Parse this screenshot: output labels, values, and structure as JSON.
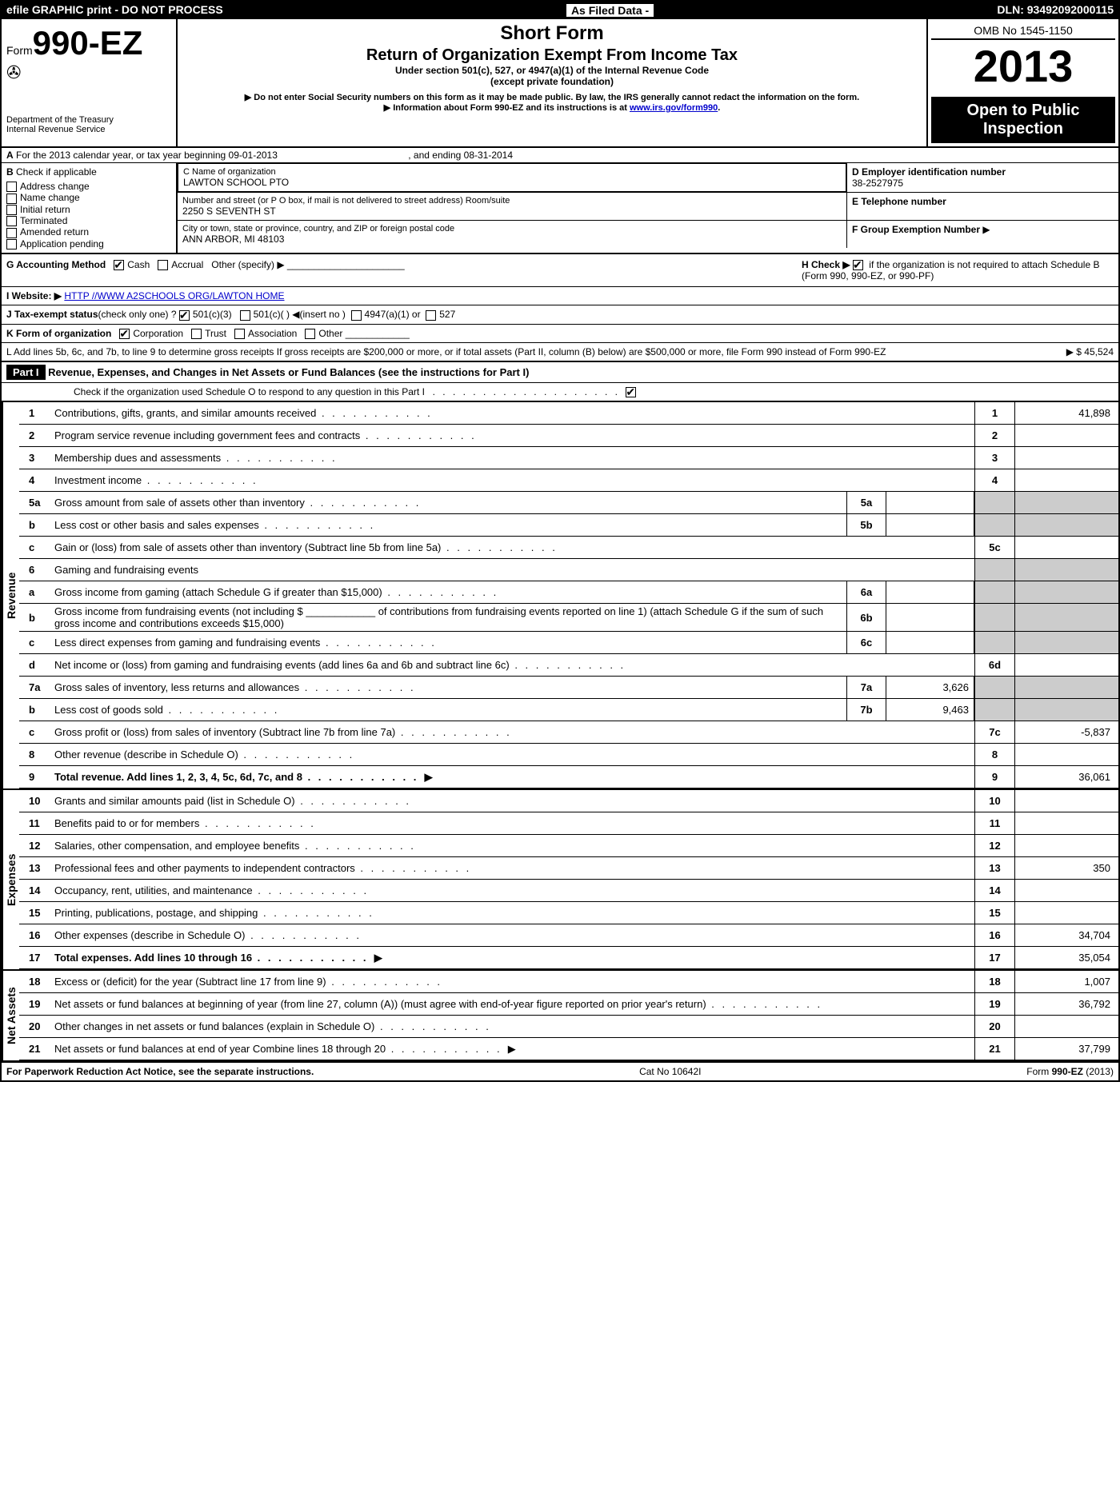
{
  "topbar": {
    "left": "efile GRAPHIC print - DO NOT PROCESS",
    "mid": "As Filed Data -",
    "right": "DLN: 93492092000115"
  },
  "header": {
    "form_prefix": "Form",
    "form_no": "990-EZ",
    "dept1": "Department of the Treasury",
    "dept2": "Internal Revenue Service",
    "title1": "Short Form",
    "title2": "Return of Organization Exempt From Income Tax",
    "sub1": "Under section 501(c), 527, or 4947(a)(1) of the Internal Revenue Code",
    "sub2": "(except private foundation)",
    "warn1": "▶ Do not enter Social Security numbers on this form as it may be made public. By law, the IRS generally cannot redact the information on the form.",
    "warn2": "▶ Information about Form 990-EZ and its instructions is at ",
    "warn2_link": "www.irs.gov/form990",
    "omb": "OMB No 1545-1150",
    "year": "2013",
    "open1": "Open to Public",
    "open2": "Inspection"
  },
  "A": {
    "text_a": "A",
    "text": "For the 2013 calendar year, or tax year beginning 09-01-2013",
    "end": ", and ending 08-31-2014"
  },
  "B": {
    "label": "B",
    "text": "Check if applicable",
    "opts": [
      "Address change",
      "Name change",
      "Initial return",
      "Terminated",
      "Amended return",
      "Application pending"
    ]
  },
  "C": {
    "label_name": "C Name of organization",
    "name": "LAWTON SCHOOL PTO",
    "label_addr": "Number and street (or P O box, if mail is not delivered to street address) Room/suite",
    "addr": "2250 S SEVENTH ST",
    "label_city": "City or town, state or province, country, and ZIP or foreign postal code",
    "city": "ANN ARBOR, MI  48103"
  },
  "D": {
    "label": "D Employer identification number",
    "val": "38-2527975"
  },
  "E": {
    "label": "E Telephone number",
    "val": ""
  },
  "F": {
    "label": "F Group Exemption Number",
    "arrow": "▶"
  },
  "G": {
    "label": "G Accounting Method",
    "cash": "Cash",
    "accrual": "Accrual",
    "other": "Other (specify) ▶"
  },
  "H": {
    "text": "H  Check ▶",
    "rest": "if the organization is not required to attach Schedule B (Form 990, 990-EZ, or 990-PF)"
  },
  "I": {
    "label": "I Website: ▶",
    "val": "HTTP //WWW A2SCHOOLS ORG/LAWTON HOME"
  },
  "J": {
    "label": "J Tax-exempt status",
    "rest": "(check only one) ?",
    "o1": "501(c)(3)",
    "o2": "501(c)(  ) ◀(insert no )",
    "o3": "4947(a)(1) or",
    "o4": "527"
  },
  "K": {
    "label": "K Form of organization",
    "o1": "Corporation",
    "o2": "Trust",
    "o3": "Association",
    "o4": "Other"
  },
  "L": {
    "text": "L Add lines 5b, 6c, and 7b, to line 9 to determine gross receipts  If gross receipts are $200,000 or more, or if total assets (Part II, column (B) below) are $500,000 or more, file Form 990 instead of Form 990-EZ",
    "arrow": "▶",
    "val": "$ 45,524"
  },
  "part1": {
    "hdr": "Part I",
    "title": "Revenue, Expenses, and Changes in Net Assets or Fund Balances (see the instructions for Part I)",
    "sub": "Check if the organization used Schedule O to respond to any question in this Part I"
  },
  "sec_labels": {
    "rev": "Revenue",
    "exp": "Expenses",
    "na": "Net Assets"
  },
  "lines": {
    "l1": {
      "n": "1",
      "d": "Contributions, gifts, grants, and similar amounts received",
      "rn": "1",
      "rv": "41,898"
    },
    "l2": {
      "n": "2",
      "d": "Program service revenue including government fees and contracts",
      "rn": "2",
      "rv": ""
    },
    "l3": {
      "n": "3",
      "d": "Membership dues and assessments",
      "rn": "3",
      "rv": ""
    },
    "l4": {
      "n": "4",
      "d": "Investment income",
      "rn": "4",
      "rv": ""
    },
    "l5a": {
      "n": "5a",
      "d": "Gross amount from sale of assets other than inventory",
      "mn": "5a",
      "mv": ""
    },
    "l5b": {
      "n": "b",
      "d": "Less  cost or other basis and sales expenses",
      "mn": "5b",
      "mv": ""
    },
    "l5c": {
      "n": "c",
      "d": "Gain or (loss) from sale of assets other than inventory (Subtract line 5b from line 5a)",
      "rn": "5c",
      "rv": ""
    },
    "l6": {
      "n": "6",
      "d": "Gaming and fundraising events"
    },
    "l6a": {
      "n": "a",
      "d": "Gross income from gaming (attach Schedule G if greater than $15,000)",
      "mn": "6a",
      "mv": ""
    },
    "l6b": {
      "n": "b",
      "d": "Gross income from fundraising events (not including $ ____________ of contributions from fundraising events reported on line 1) (attach Schedule G if the sum of such gross income and contributions exceeds $15,000)",
      "mn": "6b",
      "mv": ""
    },
    "l6c": {
      "n": "c",
      "d": "Less  direct expenses from gaming and fundraising events",
      "mn": "6c",
      "mv": ""
    },
    "l6d": {
      "n": "d",
      "d": "Net income or (loss) from gaming and fundraising events (add lines 6a and 6b and subtract line 6c)",
      "rn": "6d",
      "rv": ""
    },
    "l7a": {
      "n": "7a",
      "d": "Gross sales of inventory, less returns and allowances",
      "mn": "7a",
      "mv": "3,626"
    },
    "l7b": {
      "n": "b",
      "d": "Less  cost of goods sold",
      "mn": "7b",
      "mv": "9,463"
    },
    "l7c": {
      "n": "c",
      "d": "Gross profit or (loss) from sales of inventory (Subtract line 7b from line 7a)",
      "rn": "7c",
      "rv": "-5,837"
    },
    "l8": {
      "n": "8",
      "d": "Other revenue (describe in Schedule O)",
      "rn": "8",
      "rv": ""
    },
    "l9": {
      "n": "9",
      "d": "Total revenue. Add lines 1, 2, 3, 4, 5c, 6d, 7c, and 8",
      "rn": "9",
      "rv": "36,061",
      "bold": true,
      "arrow": true
    },
    "l10": {
      "n": "10",
      "d": "Grants and similar amounts paid (list in Schedule O)",
      "rn": "10",
      "rv": ""
    },
    "l11": {
      "n": "11",
      "d": "Benefits paid to or for members",
      "rn": "11",
      "rv": ""
    },
    "l12": {
      "n": "12",
      "d": "Salaries, other compensation, and employee benefits",
      "rn": "12",
      "rv": ""
    },
    "l13": {
      "n": "13",
      "d": "Professional fees and other payments to independent contractors",
      "rn": "13",
      "rv": "350"
    },
    "l14": {
      "n": "14",
      "d": "Occupancy, rent, utilities, and maintenance",
      "rn": "14",
      "rv": ""
    },
    "l15": {
      "n": "15",
      "d": "Printing, publications, postage, and shipping",
      "rn": "15",
      "rv": ""
    },
    "l16": {
      "n": "16",
      "d": "Other expenses (describe in Schedule O)",
      "rn": "16",
      "rv": "34,704"
    },
    "l17": {
      "n": "17",
      "d": "Total expenses. Add lines 10 through 16",
      "rn": "17",
      "rv": "35,054",
      "bold": true,
      "arrow": true
    },
    "l18": {
      "n": "18",
      "d": "Excess or (deficit) for the year (Subtract line 17 from line 9)",
      "rn": "18",
      "rv": "1,007"
    },
    "l19": {
      "n": "19",
      "d": "Net assets or fund balances at beginning of year (from line 27, column (A)) (must agree with end-of-year figure reported on prior year's return)",
      "rn": "19",
      "rv": "36,792"
    },
    "l20": {
      "n": "20",
      "d": "Other changes in net assets or fund balances (explain in Schedule O)",
      "rn": "20",
      "rv": ""
    },
    "l21": {
      "n": "21",
      "d": "Net assets or fund balances at end of year  Combine lines 18 through 20",
      "rn": "21",
      "rv": "37,799",
      "arrow": true
    }
  },
  "footer": {
    "left": "For Paperwork Reduction Act Notice, see the separate instructions.",
    "mid": "Cat No 10642I",
    "right": "Form 990-EZ (2013)"
  }
}
